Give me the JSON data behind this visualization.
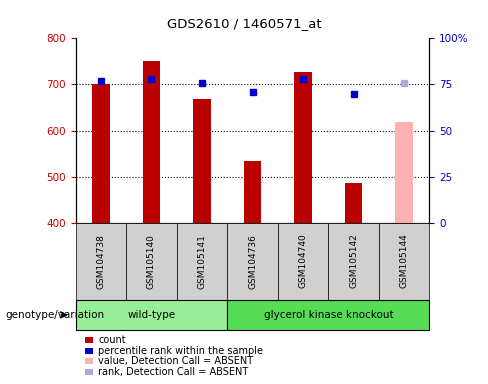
{
  "title": "GDS2610 / 1460571_at",
  "samples": [
    "GSM104738",
    "GSM105140",
    "GSM105141",
    "GSM104736",
    "GSM104740",
    "GSM105142",
    "GSM105144"
  ],
  "counts": [
    700,
    750,
    668,
    534,
    728,
    487,
    618
  ],
  "percentile_ranks": [
    77,
    78,
    76,
    71,
    78,
    70,
    76
  ],
  "absent_flags": [
    false,
    false,
    false,
    false,
    false,
    false,
    true
  ],
  "bar_color_normal": "#bb0000",
  "bar_color_absent": "#ffb0b0",
  "dot_color_normal": "#0000cc",
  "dot_color_absent": "#aaaadd",
  "ylim_left": [
    400,
    800
  ],
  "ylim_right": [
    0,
    100
  ],
  "right_ticks": [
    0,
    25,
    50,
    75,
    100
  ],
  "right_tick_labels": [
    "0",
    "25",
    "50",
    "75",
    "100%"
  ],
  "left_ticks": [
    400,
    500,
    600,
    700,
    800
  ],
  "dotted_lines": [
    500,
    600,
    700
  ],
  "groups": [
    {
      "label": "wild-type",
      "indices": [
        0,
        1,
        2
      ],
      "color": "#99ee99"
    },
    {
      "label": "glycerol kinase knockout",
      "indices": [
        3,
        4,
        5,
        6
      ],
      "color": "#55dd55"
    }
  ],
  "genotype_label": "genotype/variation",
  "legend_items": [
    {
      "label": "count",
      "color": "#bb0000"
    },
    {
      "label": "percentile rank within the sample",
      "color": "#0000cc"
    },
    {
      "label": "value, Detection Call = ABSENT",
      "color": "#ffb0b0"
    },
    {
      "label": "rank, Detection Call = ABSENT",
      "color": "#aaaadd"
    }
  ],
  "bar_width": 0.35,
  "background_color": "#ffffff",
  "axis_color_left": "#cc0000",
  "axis_color_right": "#0000cc",
  "sample_box_color": "#d0d0d0"
}
